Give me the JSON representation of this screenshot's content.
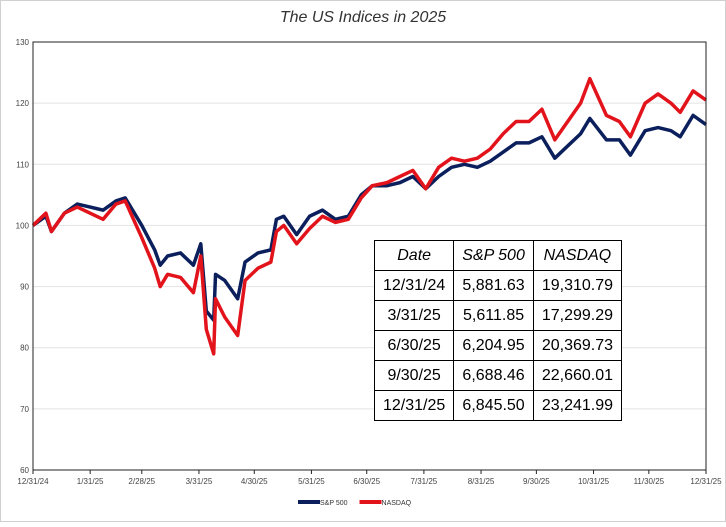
{
  "chart_data": {
    "type": "line",
    "title": "The US Indices in 2025",
    "x": [
      "12/31/24",
      "1/7/25",
      "1/10/25",
      "1/17/25",
      "1/24/25",
      "1/31/25",
      "2/7/25",
      "2/14/25",
      "2/19/25",
      "2/28/25",
      "3/7/25",
      "3/10/25",
      "3/14/25",
      "3/21/25",
      "3/28/25",
      "4/1/25",
      "4/4/25",
      "4/8/25",
      "4/9/25",
      "4/14/25",
      "4/21/25",
      "4/25/25",
      "5/2/25",
      "5/9/25",
      "5/12/25",
      "5/16/25",
      "5/23/25",
      "5/30/25",
      "6/6/25",
      "6/13/25",
      "6/20/25",
      "6/27/25",
      "7/3/25",
      "7/11/25",
      "7/18/25",
      "7/25/25",
      "8/1/25",
      "8/8/25",
      "8/15/25",
      "8/22/25",
      "8/29/25",
      "9/5/25",
      "9/12/25",
      "9/19/25",
      "9/26/25",
      "10/3/25",
      "10/10/25",
      "10/17/25",
      "10/24/25",
      "10/29/25",
      "11/7/25",
      "11/14/25",
      "11/20/25",
      "11/28/25",
      "12/5/25",
      "12/12/25",
      "12/17/25",
      "12/24/25",
      "12/31/25"
    ],
    "series": [
      {
        "name": "S&P 500",
        "color": "#0b1f5c",
        "values": [
          100,
          101.5,
          99,
          102,
          103.5,
          103,
          102.5,
          104,
          104.5,
          100,
          96,
          93.5,
          95,
          95.5,
          93.5,
          97,
          86,
          84.5,
          92,
          91,
          88,
          94,
          95.5,
          96,
          101,
          101.5,
          98.5,
          101.5,
          102.5,
          101,
          101.5,
          105,
          106.5,
          106.5,
          107,
          108,
          106,
          108,
          109.5,
          110,
          109.5,
          110.5,
          112,
          113.5,
          113.5,
          114.5,
          111,
          113,
          115,
          117.5,
          114,
          114,
          111.5,
          115.5,
          116,
          115.5,
          114.5,
          118,
          116.5
        ]
      },
      {
        "name": "NASDAQ",
        "color": "#e3131b",
        "values": [
          100,
          102,
          99,
          102,
          103,
          102,
          101,
          103.5,
          104,
          98,
          93,
          90,
          92,
          91.5,
          89,
          95,
          83,
          79,
          88,
          85,
          82,
          91,
          93,
          94,
          99,
          100,
          97,
          99.5,
          101.5,
          100.5,
          101,
          104.5,
          106.5,
          107,
          108,
          109,
          106,
          109.5,
          111,
          110.5,
          111,
          112.5,
          115,
          117,
          117,
          119,
          114,
          117,
          120,
          124,
          118,
          117,
          114.5,
          120,
          121.5,
          120,
          118.5,
          122,
          120.5
        ]
      }
    ],
    "xlim": [
      "12/31/24",
      "12/31/25"
    ],
    "xticks": [
      "12/31/24",
      "1/31/25",
      "2/28/25",
      "3/31/25",
      "4/30/25",
      "5/31/25",
      "6/30/25",
      "7/31/25",
      "8/31/25",
      "9/30/25",
      "10/31/25",
      "11/30/25",
      "12/31/25"
    ],
    "ylim": [
      60,
      130
    ],
    "yticks": [
      60,
      70,
      80,
      90,
      100,
      110,
      120,
      130
    ],
    "grid": true,
    "legend": "bottom"
  },
  "table": {
    "header": [
      "Date",
      "S&P 500",
      "NASDAQ"
    ],
    "rows": [
      [
        "12/31/24",
        "5,881.63",
        "19,310.79"
      ],
      [
        "3/31/25",
        "5,611.85",
        "17,299.29"
      ],
      [
        "6/30/25",
        "6,204.95",
        "20,369.73"
      ],
      [
        "9/30/25",
        "6,688.46",
        "22,660.01"
      ],
      [
        "12/31/25",
        "6,845.50",
        "23,241.99"
      ]
    ]
  }
}
